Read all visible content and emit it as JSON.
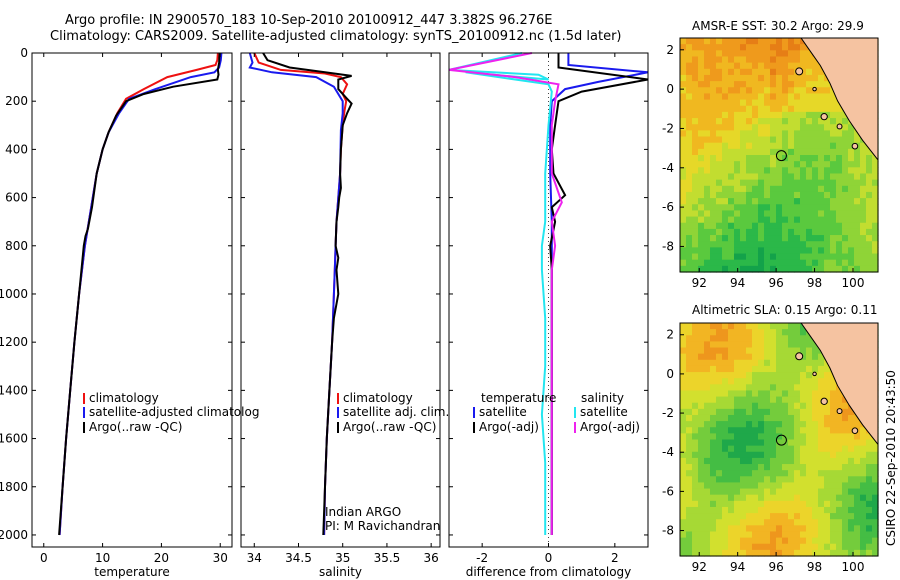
{
  "header": {
    "title_line1": "Argo profile: IN 2900570_183 10-Sep-2010 20100912_447 3.382S 96.276E",
    "title_line2": "Climatology: CARS2009. Satellite-adjusted climatology: synTS_20100912.nc (1.5d later)"
  },
  "side_stamp": "CSIRO 22-Sep-2010 20:43:50",
  "colors": {
    "climatology": "#ee1111",
    "satellite": "#1a1aee",
    "argo": "#000000",
    "sat_salinity": "#22e6f0",
    "argo_salinity": "#ee22ee"
  },
  "chart_data": [
    {
      "type": "line",
      "xlabel": "temperature",
      "ylabel": "",
      "xlim": [
        -2,
        32
      ],
      "ylim": [
        2050,
        0
      ],
      "y_inverted": true,
      "xticks": [
        0,
        10,
        20,
        30
      ],
      "yticks": [
        0,
        200,
        400,
        600,
        800,
        1000,
        1200,
        1400,
        1600,
        1800,
        2000
      ],
      "legend": [
        "climatology",
        "satellite-adjusted climatolog",
        "Argo(..raw -QC)"
      ],
      "series": [
        {
          "name": "climatology",
          "color": "#ee1111",
          "points": [
            [
              29.6,
              0
            ],
            [
              29.5,
              30
            ],
            [
              29.2,
              50
            ],
            [
              26,
              70
            ],
            [
              21,
              100
            ],
            [
              17,
              150
            ],
            [
              14,
              190
            ],
            [
              12.5,
              250
            ],
            [
              11,
              330
            ],
            [
              10,
              400
            ],
            [
              9,
              500
            ],
            [
              8,
              650
            ],
            [
              7,
              800
            ],
            [
              6,
              1000
            ],
            [
              5.2,
              1200
            ],
            [
              4.5,
              1400
            ],
            [
              3.8,
              1600
            ],
            [
              3.2,
              1800
            ],
            [
              2.7,
              2000
            ]
          ]
        },
        {
          "name": "satellite-adjusted climatolog",
          "color": "#1a1aee",
          "points": [
            [
              30.2,
              0
            ],
            [
              30.1,
              30
            ],
            [
              29.8,
              60
            ],
            [
              29,
              80
            ],
            [
              25,
              100
            ],
            [
              19,
              150
            ],
            [
              14.5,
              190
            ],
            [
              12.8,
              250
            ],
            [
              11,
              330
            ],
            [
              10,
              400
            ],
            [
              9,
              500
            ],
            [
              8,
              650
            ],
            [
              7,
              800
            ],
            [
              6,
              1000
            ],
            [
              5.2,
              1200
            ],
            [
              4.5,
              1400
            ],
            [
              3.8,
              1600
            ],
            [
              3.2,
              1800
            ],
            [
              2.7,
              2000
            ]
          ]
        },
        {
          "name": "Argo(..raw -QC)",
          "color": "#000000",
          "points": [
            [
              29.9,
              0
            ],
            [
              29.8,
              40
            ],
            [
              29.6,
              70
            ],
            [
              29.7,
              90
            ],
            [
              29.5,
              110
            ],
            [
              22,
              140
            ],
            [
              17,
              170
            ],
            [
              14,
              200
            ],
            [
              12.3,
              260
            ],
            [
              11,
              330
            ],
            [
              10,
              400
            ],
            [
              9,
              500
            ],
            [
              8.2,
              640
            ],
            [
              7.5,
              730
            ],
            [
              7.1,
              760
            ],
            [
              6.8,
              800
            ],
            [
              6,
              1000
            ],
            [
              5.2,
              1200
            ],
            [
              4.5,
              1400
            ],
            [
              3.8,
              1600
            ],
            [
              3.2,
              1800
            ],
            [
              2.6,
              2000
            ]
          ]
        }
      ]
    },
    {
      "type": "line",
      "xlabel": "salinity",
      "xlim": [
        33.85,
        36.1
      ],
      "ylim": [
        2050,
        0
      ],
      "y_inverted": true,
      "xticks": [
        34,
        34.5,
        35,
        35.5,
        36
      ],
      "xticklabels": [
        "34",
        "34.5",
        "35",
        "35.5",
        "36"
      ],
      "legend": [
        "climatology",
        "satellite adj. clim.",
        "Argo(..raw -QC)"
      ],
      "annotation": [
        "Indian ARGO",
        "PI: M Ravichandran"
      ],
      "series": [
        {
          "name": "climatology",
          "color": "#ee1111",
          "points": [
            [
              34.0,
              0
            ],
            [
              34.05,
              40
            ],
            [
              34.3,
              70
            ],
            [
              34.8,
              85
            ],
            [
              34.98,
              100
            ],
            [
              35.05,
              130
            ],
            [
              35.0,
              170
            ],
            [
              35.04,
              200
            ],
            [
              35.02,
              240
            ],
            [
              35.0,
              300
            ],
            [
              34.98,
              400
            ],
            [
              34.97,
              500
            ],
            [
              34.95,
              600
            ],
            [
              34.93,
              700
            ],
            [
              34.92,
              800
            ],
            [
              34.91,
              900
            ],
            [
              34.9,
              1000
            ],
            [
              34.88,
              1200
            ],
            [
              34.85,
              1400
            ],
            [
              34.82,
              1600
            ],
            [
              34.8,
              1800
            ],
            [
              34.79,
              2000
            ]
          ]
        },
        {
          "name": "satellite adj. clim.",
          "color": "#1a1aee",
          "points": [
            [
              33.95,
              0
            ],
            [
              33.98,
              40
            ],
            [
              33.95,
              60
            ],
            [
              34.2,
              80
            ],
            [
              34.7,
              100
            ],
            [
              34.9,
              140
            ],
            [
              34.95,
              170
            ],
            [
              35.0,
              200
            ],
            [
              35.0,
              250
            ],
            [
              34.98,
              320
            ],
            [
              34.97,
              500
            ],
            [
              34.95,
              600
            ],
            [
              34.93,
              700
            ],
            [
              34.92,
              800
            ],
            [
              34.91,
              900
            ],
            [
              34.9,
              1000
            ],
            [
              34.88,
              1200
            ],
            [
              34.85,
              1400
            ],
            [
              34.82,
              1600
            ],
            [
              34.8,
              1800
            ],
            [
              34.79,
              2000
            ]
          ]
        },
        {
          "name": "Argo(..raw -QC)",
          "color": "#000000",
          "points": [
            [
              34.1,
              0
            ],
            [
              34.15,
              30
            ],
            [
              34.4,
              60
            ],
            [
              34.8,
              80
            ],
            [
              35.1,
              95
            ],
            [
              34.95,
              110
            ],
            [
              34.95,
              150
            ],
            [
              35.05,
              190
            ],
            [
              35.1,
              210
            ],
            [
              35.05,
              250
            ],
            [
              35.0,
              300
            ],
            [
              34.98,
              400
            ],
            [
              34.97,
              500
            ],
            [
              34.98,
              560
            ],
            [
              34.96,
              600
            ],
            [
              34.95,
              640
            ],
            [
              34.93,
              700
            ],
            [
              34.92,
              800
            ],
            [
              34.95,
              850
            ],
            [
              34.93,
              900
            ],
            [
              34.95,
              1000
            ],
            [
              34.9,
              1100
            ],
            [
              34.88,
              1200
            ],
            [
              34.85,
              1400
            ],
            [
              34.82,
              1600
            ],
            [
              34.8,
              1800
            ],
            [
              34.78,
              2000
            ]
          ]
        }
      ]
    },
    {
      "type": "line",
      "xlabel": "difference from climatology",
      "xlim": [
        -3,
        3
      ],
      "ylim": [
        2050,
        0
      ],
      "y_inverted": true,
      "xticks": [
        -2,
        0,
        2
      ],
      "zero_line": true,
      "legend_groups": [
        {
          "header": "temperature",
          "items": [
            "satellite",
            "Argo(-adj)"
          ]
        },
        {
          "header": "salinity",
          "items": [
            "satellite",
            "Argo(-adj)"
          ]
        }
      ],
      "series": [
        {
          "name": "satellite",
          "group": "temperature",
          "color": "#1a1aee",
          "points": [
            [
              0.6,
              0
            ],
            [
              0.6,
              50
            ],
            [
              3,
              80
            ],
            [
              1.5,
              120
            ],
            [
              0.5,
              150
            ],
            [
              0.1,
              200
            ],
            [
              0.05,
              300
            ],
            [
              0.05,
              500
            ],
            [
              0.1,
              700
            ],
            [
              0.1,
              900
            ],
            [
              0.1,
              1200
            ],
            [
              0.1,
              1600
            ],
            [
              0.1,
              2000
            ]
          ]
        },
        {
          "name": "Argo(-adj)",
          "group": "temperature",
          "color": "#000000",
          "points": [
            [
              0.3,
              0
            ],
            [
              0.3,
              60
            ],
            [
              3,
              110
            ],
            [
              1,
              160
            ],
            [
              0.3,
              200
            ],
            [
              0.2,
              300
            ],
            [
              0.1,
              400
            ],
            [
              0.15,
              500
            ],
            [
              0.5,
              590
            ],
            [
              0.1,
              640
            ],
            [
              0.2,
              700
            ],
            [
              0.05,
              800
            ],
            [
              0.1,
              900
            ],
            [
              0.1,
              1000
            ],
            [
              0.1,
              1200
            ],
            [
              0.1,
              1400
            ],
            [
              0.1,
              1600
            ],
            [
              0.1,
              1800
            ],
            [
              0.1,
              2000
            ]
          ]
        },
        {
          "name": "satellite",
          "group": "salinity",
          "color": "#22e6f0",
          "points": [
            [
              -0.8,
              0
            ],
            [
              -3,
              70
            ],
            [
              -0.3,
              90
            ],
            [
              0,
              110
            ],
            [
              -2.5,
              80
            ],
            [
              0,
              130
            ],
            [
              0.1,
              160
            ],
            [
              0,
              300
            ],
            [
              -0.1,
              500
            ],
            [
              -0.1,
              700
            ],
            [
              -0.2,
              800
            ],
            [
              -0.2,
              900
            ],
            [
              -0.1,
              1100
            ],
            [
              -0.1,
              1300
            ],
            [
              -0.2,
              1500
            ],
            [
              -0.1,
              1700
            ],
            [
              -0.1,
              2000
            ]
          ]
        },
        {
          "name": "Argo(-adj)",
          "group": "salinity",
          "color": "#ee22ee",
          "points": [
            [
              -0.5,
              0
            ],
            [
              -3,
              70
            ],
            [
              -1,
              100
            ],
            [
              0.3,
              130
            ],
            [
              0.2,
              200
            ],
            [
              0.1,
              300
            ],
            [
              0.1,
              500
            ],
            [
              0.4,
              620
            ],
            [
              0.1,
              700
            ],
            [
              0.2,
              800
            ],
            [
              0.1,
              900
            ],
            [
              0.1,
              1100
            ],
            [
              0.1,
              1300
            ],
            [
              0.1,
              1600
            ],
            [
              0.1,
              2000
            ]
          ]
        }
      ]
    },
    {
      "type": "heatmap",
      "title": "AMSR-E SST: 30.2 Argo: 29.9",
      "xlim": [
        91,
        101.3
      ],
      "ylim": [
        -9.3,
        2.6
      ],
      "xticks": [
        92,
        94,
        96,
        98,
        100
      ],
      "yticks": [
        2,
        0,
        -2,
        -4,
        -6,
        -8
      ],
      "marker": {
        "lon": 96.276,
        "lat": -3.382
      },
      "field": "SST"
    },
    {
      "type": "heatmap",
      "title": "Altimetric SLA: 0.15 Argo: 0.11",
      "xlim": [
        91,
        101.3
      ],
      "ylim": [
        -9.3,
        2.6
      ],
      "xticks": [
        92,
        94,
        96,
        98,
        100
      ],
      "yticks": [
        2,
        0,
        -2,
        -4,
        -6,
        -8
      ],
      "marker": {
        "lon": 96.276,
        "lat": -3.382
      },
      "field": "SLA"
    }
  ]
}
